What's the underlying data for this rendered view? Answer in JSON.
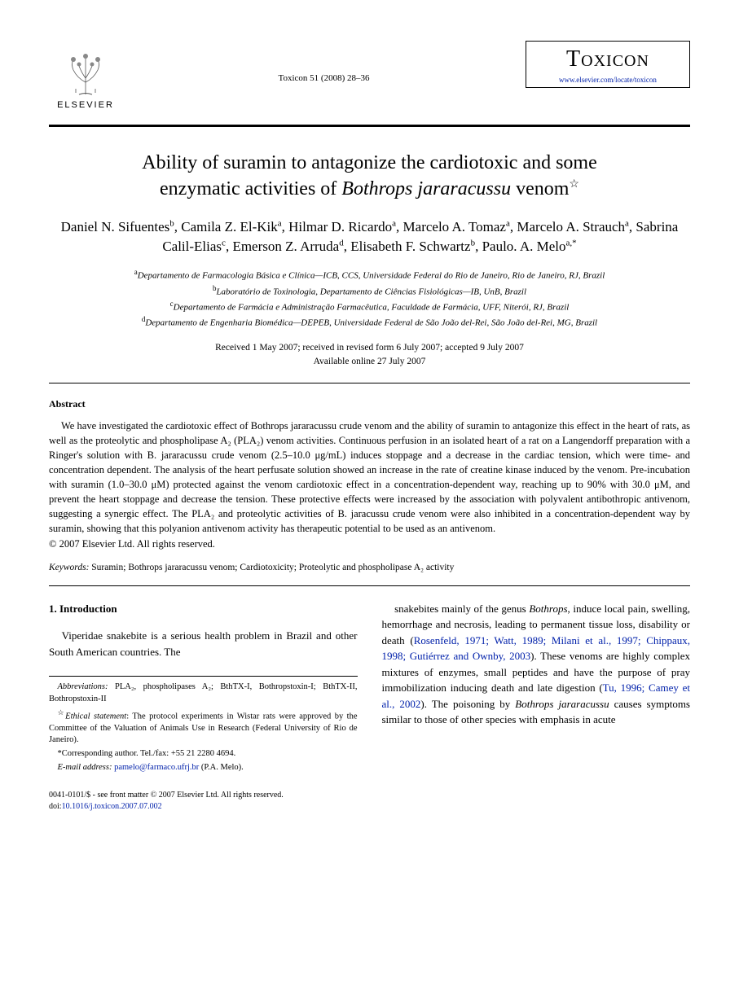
{
  "publisher": {
    "name": "ELSEVIER"
  },
  "citation": "Toxicon 51 (2008) 28–36",
  "journal": {
    "name": "Toxicon",
    "url": "www.elsevier.com/locate/toxicon"
  },
  "title_line1": "Ability of suramin to antagonize the cardiotoxic and some",
  "title_line2_pre": "enzymatic activities of ",
  "title_line2_italic": "Bothrops jararacussu",
  "title_line2_post": " venom",
  "authors_html": "Daniel N. Sifuentes<sup>b</sup>, Camila Z. El-Kik<sup>a</sup>, Hilmar D. Ricardo<sup>a</sup>, Marcelo A. Tomaz<sup>a</sup>, Marcelo A. Strauch<sup>a</sup>, Sabrina Calil-Elias<sup>c</sup>, Emerson Z. Arruda<sup>d</sup>, Elisabeth F. Schwartz<sup>b</sup>, Paulo. A. Melo<sup>a,*</sup>",
  "affiliations": [
    {
      "sup": "a",
      "text": "Departamento de Farmacologia Básica e Clínica—ICB, CCS, Universidade Federal do Rio de Janeiro, Rio de Janeiro, RJ, Brazil"
    },
    {
      "sup": "b",
      "text": "Laboratório de Toxinologia, Departamento de Ciências Fisiológicas—IB, UnB, Brazil"
    },
    {
      "sup": "c",
      "text": "Departamento de Farmácia e Administração Farmacêutica, Faculdade de Farmácia, UFF, Niterói, RJ, Brazil"
    },
    {
      "sup": "d",
      "text": "Departamento de Engenharia Biomédica—DEPEB, Universidade Federal de São João del-Rei, São João del-Rei, MG, Brazil"
    }
  ],
  "dates": {
    "received": "Received 1 May 2007; received in revised form 6 July 2007; accepted 9 July 2007",
    "available": "Available online 27 July 2007"
  },
  "abstract": {
    "heading": "Abstract",
    "text": "We have investigated the cardiotoxic effect of Bothrops jararacussu crude venom and the ability of suramin to antagonize this effect in the heart of rats, as well as the proteolytic and phospholipase A₂ (PLA₂) venom activities. Continuous perfusion in an isolated heart of a rat on a Langendorff preparation with a Ringer's solution with B. jararacussu crude venom (2.5–10.0 μg/mL) induces stoppage and a decrease in the cardiac tension, which were time- and concentration dependent. The analysis of the heart perfusate solution showed an increase in the rate of creatine kinase induced by the venom. Pre-incubation with suramin (1.0–30.0 μM) protected against the venom cardiotoxic effect in a concentration-dependent way, reaching up to 90% with 30.0 μM, and prevent the heart stoppage and decrease the tension. These protective effects were increased by the association with polyvalent antibothropic antivenom, suggesting a synergic effect. The PLA₂ and proteolytic activities of B. jaracussu crude venom were also inhibited in a concentration-dependent way by suramin, showing that this polyanion antivenom activity has therapeutic potential to be used as an antivenom.",
    "copyright": "© 2007 Elsevier Ltd. All rights reserved."
  },
  "keywords": {
    "label": "Keywords:",
    "text": " Suramin; Bothrops jararacussu venom; Cardiotoxicity; Proteolytic and phospholipase A₂ activity"
  },
  "intro": {
    "heading": "1. Introduction",
    "left_text": "Viperidae snakebite is a serious health problem in Brazil and other South American countries. The",
    "right_text_1": "snakebites mainly of the genus ",
    "right_italic_1": "Bothrops",
    "right_text_2": ", induce local pain, swelling, hemorrhage and necrosis, leading to permanent tissue loss, disability or death (",
    "right_refs": "Rosenfeld, 1971; Watt, 1989; Milani et al., 1997; Chippaux, 1998; Gutiérrez and Ownby, 2003",
    "right_text_3": "). These venoms are highly complex mixtures of enzymes, small peptides and have the purpose of pray immobilization inducing death and late digestion (",
    "right_refs_2": "Tu, 1996; Camey et al., 2002",
    "right_text_4": "). The poisoning by ",
    "right_italic_2": "Bothrops jararacussu",
    "right_text_5": " causes symptoms similar to those of other species with emphasis in acute"
  },
  "footnotes": {
    "abbrev_label": "Abbreviations:",
    "abbrev_text": " PLA₂, phospholipases A₂; BthTX-I, Bothropstoxin-I; BthTX-II, Bothropstoxin-II",
    "ethical_label": "Ethical statement",
    "ethical_text": ": The protocol experiments in Wistar rats were approved by the Committee of the Valuation of Animals Use in Research (Federal University of Rio de Janeiro).",
    "corr_text": "*Corresponding author. Tel./fax: +55 21 2280 4694.",
    "email_label": "E-mail address:",
    "email": " pamelo@farmaco.ufrj.br",
    "email_post": " (P.A. Melo)."
  },
  "bottom": {
    "issn": "0041-0101/$ - see front matter © 2007 Elsevier Ltd. All rights reserved.",
    "doi_pre": "doi:",
    "doi": "10.1016/j.toxicon.2007.07.002"
  },
  "colors": {
    "link": "#0020aa",
    "text": "#000000",
    "background": "#ffffff"
  },
  "fonts": {
    "body": "Georgia, Times New Roman, serif",
    "title_size": 24,
    "author_size": 17,
    "abstract_size": 12.5,
    "body_size": 13,
    "footnote_size": 10.5
  }
}
